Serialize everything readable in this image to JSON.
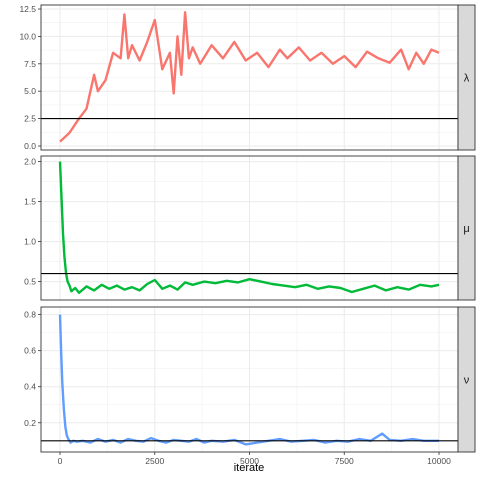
{
  "chart_data": {
    "type": "line",
    "xlabel": "iterate",
    "x_ticks": [
      0,
      2500,
      5000,
      7500,
      10000
    ],
    "x_tick_labels": [
      "0",
      "2500",
      "5000",
      "7500",
      "10000"
    ],
    "xlim": [
      0,
      10000
    ],
    "grid": true,
    "legend": "none",
    "panels": [
      {
        "strip_label": "λ",
        "color": "#F8766D",
        "ylim": [
          0,
          12.5
        ],
        "y_ticks": [
          0.0,
          2.5,
          5.0,
          7.5,
          10.0,
          12.5
        ],
        "y_tick_labels": [
          "0.0",
          "2.5",
          "5.0",
          "7.5",
          "10.0",
          "12.5"
        ],
        "hline": 2.5,
        "series": {
          "x": [
            0,
            250,
            500,
            700,
            900,
            1000,
            1200,
            1400,
            1600,
            1700,
            1800,
            1900,
            2100,
            2300,
            2500,
            2700,
            2900,
            3000,
            3100,
            3200,
            3300,
            3400,
            3500,
            3700,
            4000,
            4300,
            4600,
            4900,
            5200,
            5500,
            5800,
            6000,
            6300,
            6600,
            6900,
            7200,
            7500,
            7800,
            8100,
            8400,
            8700,
            9000,
            9200,
            9400,
            9600,
            9800,
            10000
          ],
          "y": [
            0.4,
            1.2,
            2.5,
            3.4,
            6.5,
            5.0,
            6.0,
            8.5,
            8.0,
            12.0,
            8.0,
            9.2,
            7.8,
            9.5,
            11.5,
            7.0,
            8.5,
            4.8,
            10.0,
            6.5,
            12.2,
            8.0,
            9.0,
            7.5,
            9.2,
            8.0,
            9.5,
            7.8,
            8.5,
            7.2,
            8.8,
            8.0,
            9.0,
            7.8,
            8.5,
            7.5,
            8.2,
            7.2,
            8.6,
            8.0,
            7.6,
            8.8,
            7.0,
            8.5,
            7.5,
            8.8,
            8.5
          ]
        }
      },
      {
        "strip_label": "μ",
        "color": "#00BA38",
        "ylim": [
          0.32,
          2.02
        ],
        "y_ticks": [
          0.5,
          1.0,
          1.5,
          2.0
        ],
        "y_tick_labels": [
          "0.5",
          "1.0",
          "1.5",
          "2.0"
        ],
        "hline": 0.6,
        "series": {
          "x": [
            0,
            40,
            80,
            120,
            160,
            200,
            250,
            300,
            400,
            500,
            700,
            900,
            1100,
            1300,
            1500,
            1700,
            1900,
            2100,
            2300,
            2500,
            2700,
            2900,
            3100,
            3300,
            3500,
            3800,
            4100,
            4400,
            4700,
            5000,
            5300,
            5600,
            5900,
            6200,
            6500,
            6800,
            7100,
            7400,
            7700,
            8000,
            8300,
            8600,
            8900,
            9200,
            9500,
            9800,
            10000
          ],
          "y": [
            2.0,
            1.55,
            1.1,
            0.8,
            0.6,
            0.5,
            0.45,
            0.38,
            0.42,
            0.36,
            0.44,
            0.39,
            0.46,
            0.41,
            0.45,
            0.4,
            0.43,
            0.39,
            0.47,
            0.52,
            0.41,
            0.45,
            0.4,
            0.49,
            0.46,
            0.5,
            0.48,
            0.51,
            0.49,
            0.53,
            0.5,
            0.47,
            0.45,
            0.43,
            0.46,
            0.41,
            0.44,
            0.42,
            0.37,
            0.41,
            0.45,
            0.39,
            0.43,
            0.4,
            0.46,
            0.44,
            0.46
          ]
        }
      },
      {
        "strip_label": "ν",
        "color": "#619CFF",
        "ylim": [
          0.06,
          0.82
        ],
        "y_ticks": [
          0.2,
          0.4,
          0.6,
          0.8
        ],
        "y_tick_labels": [
          "0.2",
          "0.4",
          "0.6",
          "0.8"
        ],
        "hline": 0.1,
        "series": {
          "x": [
            0,
            30,
            60,
            100,
            140,
            180,
            220,
            280,
            350,
            450,
            600,
            800,
            1000,
            1200,
            1400,
            1600,
            1800,
            2000,
            2200,
            2400,
            2600,
            2800,
            3000,
            3200,
            3400,
            3600,
            3800,
            4000,
            4300,
            4600,
            4900,
            5200,
            5500,
            5800,
            6100,
            6400,
            6700,
            7000,
            7300,
            7600,
            7900,
            8200,
            8500,
            8700,
            9000,
            9300,
            9600,
            10000
          ],
          "y": [
            0.8,
            0.6,
            0.42,
            0.28,
            0.18,
            0.13,
            0.11,
            0.09,
            0.1,
            0.095,
            0.1,
            0.09,
            0.11,
            0.095,
            0.105,
            0.09,
            0.11,
            0.1,
            0.095,
            0.115,
            0.1,
            0.09,
            0.105,
            0.1,
            0.095,
            0.11,
            0.09,
            0.1,
            0.095,
            0.105,
            0.08,
            0.09,
            0.1,
            0.11,
            0.095,
            0.1,
            0.105,
            0.09,
            0.1,
            0.095,
            0.11,
            0.1,
            0.14,
            0.105,
            0.1,
            0.11,
            0.1,
            0.1
          ]
        }
      }
    ]
  }
}
